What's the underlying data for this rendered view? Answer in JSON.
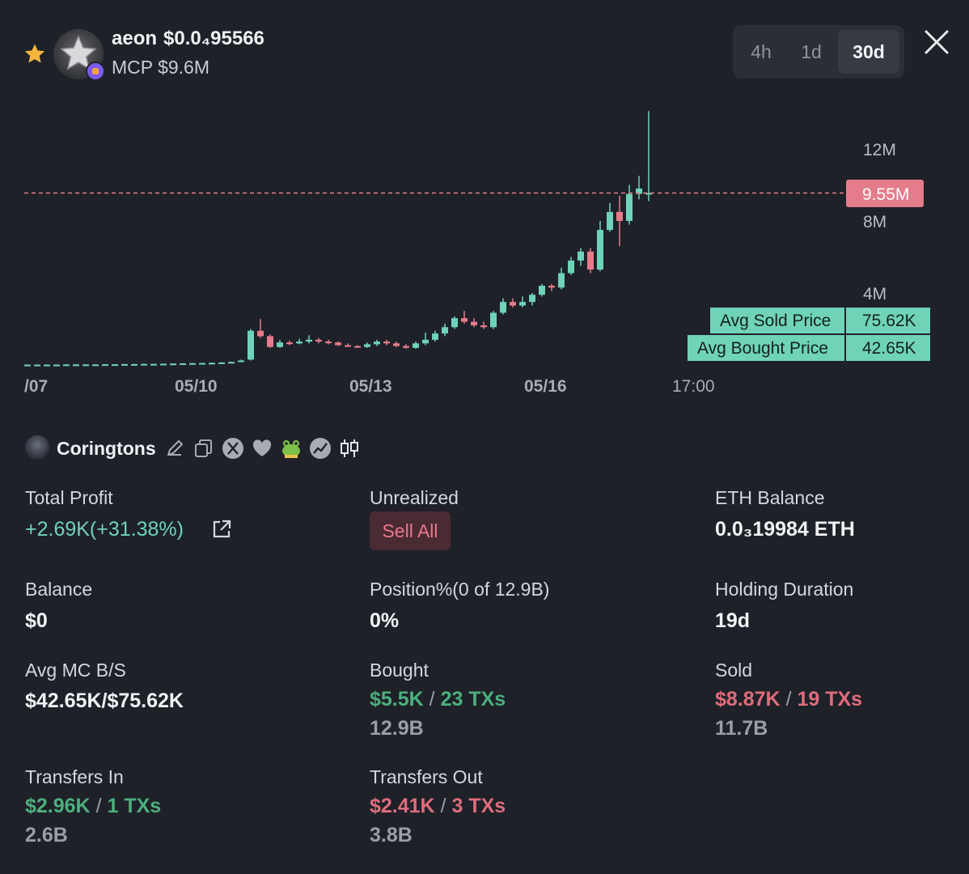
{
  "header": {
    "token_name": "aeon",
    "token_price": "$0.0₄95566",
    "mcp": "MCP $9.6M",
    "timeframes": [
      "4h",
      "1d",
      "30d"
    ],
    "active_timeframe": "30d"
  },
  "chart_data": {
    "type": "candlestick",
    "x_ticks": [
      "/07",
      "05/10",
      "05/13",
      "05/16",
      "17:00"
    ],
    "y_ticks": [
      "12M",
      "8M",
      "4M"
    ],
    "current_price_label": "9.55M",
    "current_price": 9.55,
    "unit": "M",
    "avg_sold": {
      "label": "Avg Sold Price",
      "value": "75.62K"
    },
    "avg_bought": {
      "label": "Avg Bought Price",
      "value": "42.65K"
    },
    "colors": {
      "up": "#6fd3b8",
      "down": "#e57c8c",
      "line": "#e57c8c"
    },
    "candles": [
      [
        0.02,
        0.02,
        0.03,
        0.01
      ],
      [
        0.02,
        0.02,
        0.03,
        0.01
      ],
      [
        0.02,
        0.02,
        0.03,
        0.01
      ],
      [
        0.02,
        0.02,
        0.03,
        0.01
      ],
      [
        0.02,
        0.03,
        0.04,
        0.01
      ],
      [
        0.03,
        0.03,
        0.04,
        0.02
      ],
      [
        0.03,
        0.03,
        0.04,
        0.02
      ],
      [
        0.03,
        0.03,
        0.04,
        0.02
      ],
      [
        0.03,
        0.04,
        0.05,
        0.02
      ],
      [
        0.04,
        0.04,
        0.05,
        0.03
      ],
      [
        0.04,
        0.05,
        0.06,
        0.03
      ],
      [
        0.05,
        0.05,
        0.06,
        0.04
      ],
      [
        0.05,
        0.06,
        0.07,
        0.04
      ],
      [
        0.06,
        0.06,
        0.07,
        0.05
      ],
      [
        0.06,
        0.07,
        0.08,
        0.05
      ],
      [
        0.07,
        0.08,
        0.09,
        0.06
      ],
      [
        0.08,
        0.09,
        0.1,
        0.07
      ],
      [
        0.09,
        0.1,
        0.11,
        0.08
      ],
      [
        0.1,
        0.11,
        0.12,
        0.09
      ],
      [
        0.11,
        0.12,
        0.13,
        0.1
      ],
      [
        0.12,
        0.14,
        0.15,
        0.11
      ],
      [
        0.14,
        0.17,
        0.18,
        0.13
      ],
      [
        0.17,
        0.25,
        0.3,
        0.16
      ],
      [
        0.3,
        1.9,
        2.0,
        0.25
      ],
      [
        1.9,
        1.6,
        2.55,
        1.5
      ],
      [
        1.6,
        1.0,
        1.7,
        0.95
      ],
      [
        1.0,
        1.25,
        1.4,
        0.95
      ],
      [
        1.25,
        1.2,
        1.35,
        1.1
      ],
      [
        1.2,
        1.3,
        1.45,
        1.15
      ],
      [
        1.3,
        1.4,
        1.65,
        1.2
      ],
      [
        1.4,
        1.3,
        1.5,
        1.2
      ],
      [
        1.3,
        1.25,
        1.4,
        1.15
      ],
      [
        1.25,
        1.1,
        1.3,
        1.05
      ],
      [
        1.1,
        1.05,
        1.2,
        1.0
      ],
      [
        1.05,
        1.0,
        1.1,
        0.95
      ],
      [
        1.0,
        1.15,
        1.25,
        0.95
      ],
      [
        1.15,
        1.3,
        1.4,
        1.05
      ],
      [
        1.3,
        1.2,
        1.4,
        1.1
      ],
      [
        1.2,
        1.05,
        1.3,
        1.0
      ],
      [
        1.05,
        0.95,
        1.15,
        0.9
      ],
      [
        0.95,
        1.2,
        1.3,
        0.9
      ],
      [
        1.2,
        1.4,
        1.8,
        1.1
      ],
      [
        1.4,
        1.75,
        1.9,
        1.3
      ],
      [
        1.75,
        2.1,
        2.3,
        1.6
      ],
      [
        2.1,
        2.6,
        2.7,
        2.0
      ],
      [
        2.6,
        2.4,
        3.0,
        2.3
      ],
      [
        2.4,
        2.2,
        2.6,
        2.1
      ],
      [
        2.2,
        2.1,
        2.4,
        2.0
      ],
      [
        2.1,
        2.9,
        3.0,
        2.0
      ],
      [
        2.9,
        3.5,
        3.7,
        2.8
      ],
      [
        3.5,
        3.3,
        3.7,
        3.2
      ],
      [
        3.3,
        3.5,
        3.8,
        3.2
      ],
      [
        3.5,
        3.9,
        4.0,
        3.3
      ],
      [
        3.9,
        4.4,
        4.5,
        3.8
      ],
      [
        4.4,
        4.3,
        4.5,
        4.1
      ],
      [
        4.3,
        5.1,
        5.4,
        4.2
      ],
      [
        5.1,
        5.8,
        6.0,
        5.0
      ],
      [
        5.8,
        6.3,
        6.5,
        5.5
      ],
      [
        6.3,
        5.3,
        6.5,
        5.1
      ],
      [
        5.3,
        7.5,
        8.0,
        5.2
      ],
      [
        7.5,
        8.5,
        9.0,
        7.4
      ],
      [
        8.5,
        8.0,
        9.4,
        6.6
      ],
      [
        8.0,
        9.5,
        10.0,
        7.8
      ],
      [
        9.5,
        9.8,
        10.5,
        9.2
      ]
    ],
    "last_candle": [
      9.55,
      9.55,
      14.1,
      9.1
    ]
  },
  "wallet": {
    "name": "Coringtons"
  },
  "stats": {
    "total_profit": {
      "label": "Total Profit",
      "value": "+2.69K(+31.38%)"
    },
    "unrealized": {
      "label": "Unrealized",
      "button": "Sell All"
    },
    "eth_balance": {
      "label": "ETH Balance",
      "value": "0.0₃19984 ETH"
    },
    "balance": {
      "label": "Balance",
      "value": "$0"
    },
    "position": {
      "label": "Position%(0 of 12.9B)",
      "value": "0%"
    },
    "holding": {
      "label": "Holding Duration",
      "value": "19d"
    },
    "avg_mc": {
      "label": "Avg MC B/S",
      "value": "$42.65K/$75.62K"
    },
    "bought": {
      "label": "Bought",
      "amount": "$5.5K",
      "sep": "/",
      "txs": "23 TXs",
      "qty": "12.9B"
    },
    "sold": {
      "label": "Sold",
      "amount": "$8.87K",
      "sep": "/",
      "txs": "19 TXs",
      "qty": "11.7B"
    },
    "transfers_in": {
      "label": "Transfers In",
      "amount": "$2.96K",
      "sep": "/",
      "txs": "1 TXs",
      "qty": "2.6B"
    },
    "transfers_out": {
      "label": "Transfers Out",
      "amount": "$2.41K",
      "sep": "/",
      "txs": "3 TXs",
      "qty": "3.8B"
    }
  }
}
